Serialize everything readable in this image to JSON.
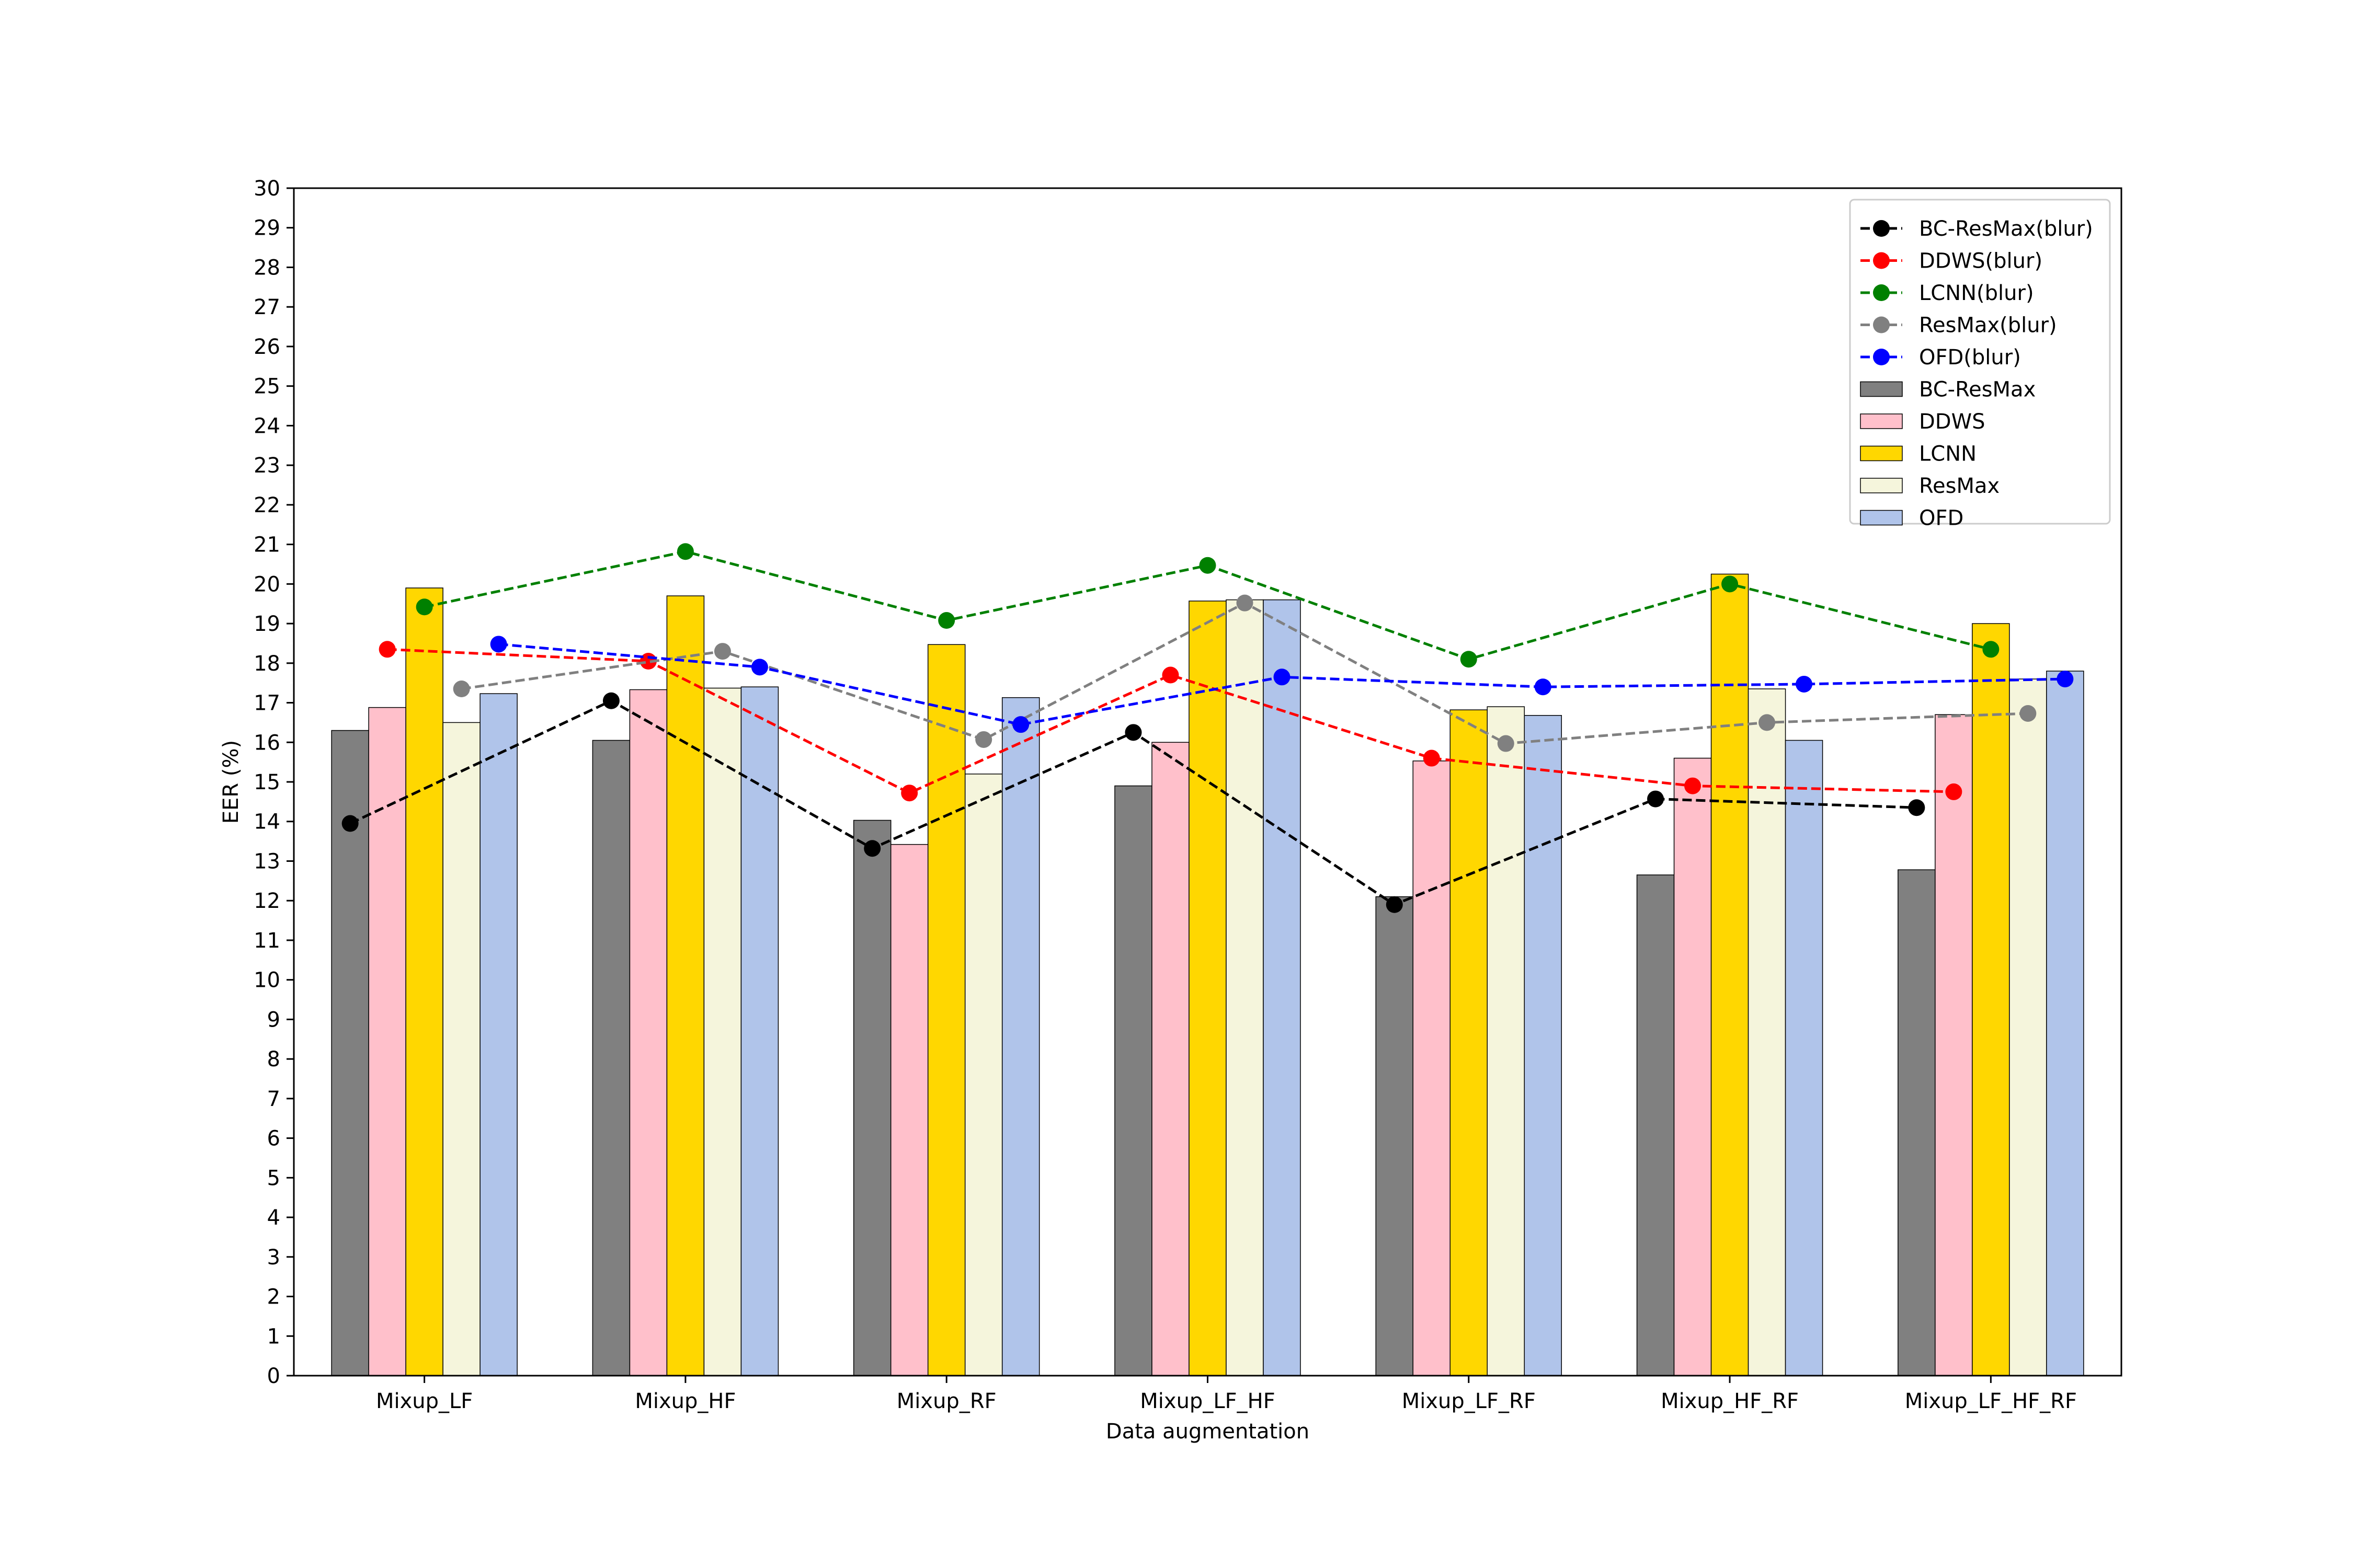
{
  "chart_data": {
    "type": "bar",
    "xlabel": "Data augmentation",
    "ylabel": "EER (%)",
    "ylim": [
      0,
      30
    ],
    "yticks": [
      0,
      1,
      2,
      3,
      4,
      5,
      6,
      7,
      8,
      9,
      10,
      11,
      12,
      13,
      14,
      15,
      16,
      17,
      18,
      19,
      20,
      21,
      22,
      23,
      24,
      25,
      26,
      27,
      28,
      29,
      30
    ],
    "grid": false,
    "legend_position": "top-right",
    "categories": [
      "Mixup_LF",
      "Mixup_HF",
      "Mixup_RF",
      "Mixup_LF_HF",
      "Mixup_LF_RF",
      "Mixup_HF_RF",
      "Mixup_LF_HF_RF"
    ],
    "bar_series": [
      {
        "name": "BC-ResMax",
        "color": "#808080",
        "values": [
          16.3,
          16.05,
          14.03,
          14.9,
          12.1,
          12.65,
          12.78
        ]
      },
      {
        "name": "DDWS",
        "color": "#ffc0cb",
        "values": [
          16.88,
          17.33,
          13.42,
          16.0,
          15.53,
          15.6,
          16.7
        ]
      },
      {
        "name": "LCNN",
        "color": "#ffd700",
        "values": [
          19.9,
          19.7,
          18.47,
          19.57,
          16.82,
          20.25,
          19.0
        ]
      },
      {
        "name": "ResMax",
        "color": "#f5f5dc",
        "values": [
          16.5,
          17.37,
          15.2,
          19.6,
          16.9,
          17.35,
          17.6
        ]
      },
      {
        "name": "OFD",
        "color": "#b0c4ea",
        "values": [
          17.23,
          17.4,
          17.13,
          19.6,
          16.68,
          16.05,
          17.8
        ]
      }
    ],
    "line_series": [
      {
        "name": "BC-ResMax(blur)",
        "color": "#000000",
        "values": [
          13.95,
          17.05,
          13.32,
          16.25,
          11.9,
          14.57,
          14.35
        ]
      },
      {
        "name": "DDWS(blur)",
        "color": "#ff0000",
        "values": [
          18.35,
          18.05,
          14.72,
          17.7,
          15.6,
          14.9,
          14.75
        ]
      },
      {
        "name": "LCNN(blur)",
        "color": "#008000",
        "values": [
          19.42,
          20.82,
          19.08,
          20.47,
          18.1,
          20.0,
          18.35
        ]
      },
      {
        "name": "ResMax(blur)",
        "color": "#808080",
        "values": [
          17.35,
          18.3,
          16.07,
          19.52,
          15.97,
          16.5,
          16.73
        ]
      },
      {
        "name": "OFD(blur)",
        "color": "#0000ff",
        "values": [
          18.48,
          17.9,
          16.45,
          17.65,
          17.4,
          17.47,
          17.6
        ]
      }
    ]
  }
}
